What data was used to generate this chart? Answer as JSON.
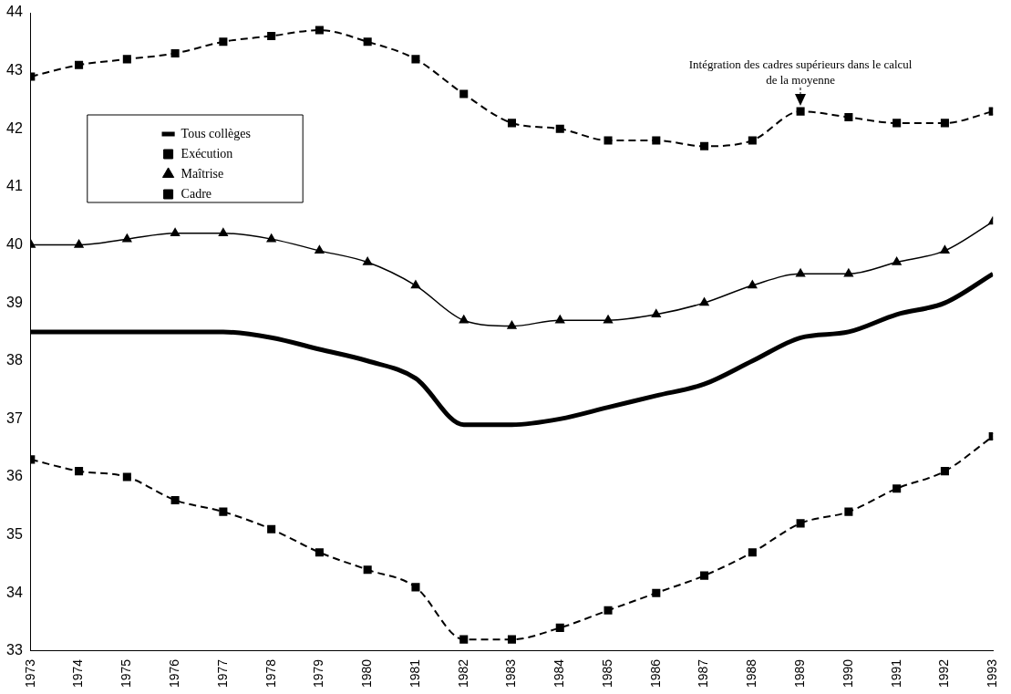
{
  "chart_data": {
    "type": "line",
    "x": [
      1973,
      1974,
      1975,
      1976,
      1977,
      1978,
      1979,
      1980,
      1981,
      1982,
      1983,
      1984,
      1985,
      1986,
      1987,
      1988,
      1989,
      1990,
      1991,
      1992,
      1993
    ],
    "xlim": [
      1973,
      1993
    ],
    "xticks": [
      1973,
      1974,
      1975,
      1976,
      1977,
      1978,
      1979,
      1980,
      1981,
      1982,
      1983,
      1984,
      1985,
      1986,
      1987,
      1988,
      1989,
      1990,
      1991,
      1992,
      1993
    ],
    "ylim": [
      33,
      44
    ],
    "yticks": [
      33,
      34,
      35,
      36,
      37,
      38,
      39,
      40,
      41,
      42,
      43,
      44
    ],
    "grid": false,
    "legend": "top left",
    "series": [
      {
        "name": "Tous collèges",
        "color": "#000000",
        "marker": "none",
        "line_style": "solid",
        "values": [
          38.5,
          38.5,
          38.5,
          38.5,
          38.5,
          38.4,
          38.2,
          38.0,
          37.7,
          36.9,
          36.9,
          37.0,
          37.2,
          37.4,
          37.6,
          38.0,
          38.4,
          38.5,
          38.8,
          39.0,
          39.5
        ]
      },
      {
        "name": "Exécution",
        "color": "#000000",
        "marker": "square",
        "line_style": "dashed",
        "values": [
          36.3,
          36.1,
          36.0,
          35.6,
          35.4,
          35.1,
          34.7,
          34.4,
          34.1,
          33.2,
          33.2,
          33.4,
          33.7,
          34.0,
          34.3,
          34.7,
          35.2,
          35.4,
          35.8,
          36.1,
          36.7
        ]
      },
      {
        "name": "Maîtrise",
        "color": "#000000",
        "marker": "triangle",
        "line_style": "solid",
        "values": [
          40.0,
          40.0,
          40.1,
          40.2,
          40.2,
          40.1,
          39.9,
          39.7,
          39.3,
          38.7,
          38.6,
          38.7,
          38.7,
          38.8,
          39.0,
          39.3,
          39.5,
          39.5,
          39.7,
          39.9,
          40.4
        ]
      },
      {
        "name": "Cadre",
        "color": "#000000",
        "marker": "square",
        "line_style": "dashed",
        "values": [
          42.9,
          43.1,
          43.2,
          43.3,
          43.5,
          43.6,
          43.7,
          43.5,
          43.2,
          42.6,
          42.1,
          42.0,
          41.8,
          41.8,
          41.7,
          41.8,
          42.3,
          42.2,
          42.1,
          42.1,
          42.3
        ]
      }
    ],
    "annotations": [
      {
        "text": "Intégration des cadres supérieurs dans le calcul de la moyenne",
        "x": 1989,
        "y": 42.3
      }
    ]
  }
}
